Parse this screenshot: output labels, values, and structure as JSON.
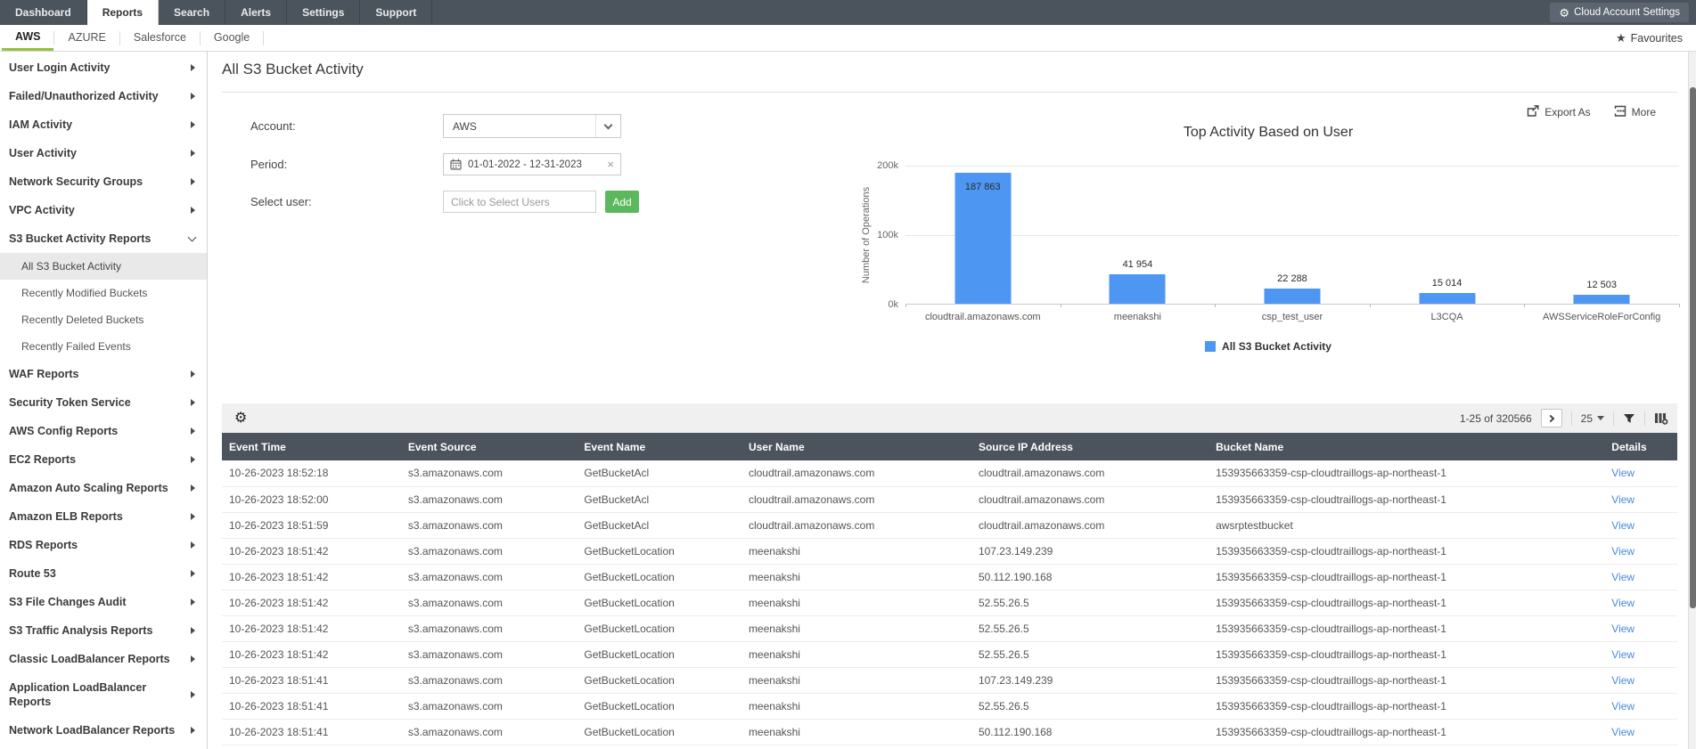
{
  "nav": {
    "tabs": [
      {
        "label": "Dashboard",
        "active": false
      },
      {
        "label": "Reports",
        "active": true
      },
      {
        "label": "Search",
        "active": false
      },
      {
        "label": "Alerts",
        "active": false
      },
      {
        "label": "Settings",
        "active": false
      },
      {
        "label": "Support",
        "active": false
      }
    ],
    "settings_button": "Cloud Account Settings"
  },
  "subnav": {
    "tabs": [
      {
        "label": "AWS",
        "active": true
      },
      {
        "label": "AZURE",
        "active": false
      },
      {
        "label": "Salesforce",
        "active": false
      },
      {
        "label": "Google",
        "active": false
      }
    ],
    "favourites_label": "Favourites"
  },
  "sidebar": {
    "items": [
      {
        "label": "User Login Activity",
        "type": "group"
      },
      {
        "label": "Failed/Unauthorized Activity",
        "type": "group"
      },
      {
        "label": "IAM Activity",
        "type": "group"
      },
      {
        "label": "User Activity",
        "type": "group"
      },
      {
        "label": "Network Security Groups",
        "type": "group"
      },
      {
        "label": "VPC Activity",
        "type": "group"
      },
      {
        "label": "S3 Bucket Activity Reports",
        "type": "group",
        "expanded": true
      },
      {
        "label": "All S3 Bucket Activity",
        "type": "sub",
        "selected": true
      },
      {
        "label": "Recently Modified Buckets",
        "type": "sub"
      },
      {
        "label": "Recently Deleted Buckets",
        "type": "sub"
      },
      {
        "label": "Recently Failed Events",
        "type": "sub"
      },
      {
        "label": "WAF Reports",
        "type": "group"
      },
      {
        "label": "Security Token Service",
        "type": "group"
      },
      {
        "label": "AWS Config Reports",
        "type": "group"
      },
      {
        "label": "EC2 Reports",
        "type": "group"
      },
      {
        "label": "Amazon Auto Scaling Reports",
        "type": "group"
      },
      {
        "label": "Amazon ELB Reports",
        "type": "group"
      },
      {
        "label": "RDS Reports",
        "type": "group"
      },
      {
        "label": "Route 53",
        "type": "group"
      },
      {
        "label": "S3 File Changes Audit",
        "type": "group"
      },
      {
        "label": "S3 Traffic Analysis Reports",
        "type": "group"
      },
      {
        "label": "Classic LoadBalancer Reports",
        "type": "group"
      },
      {
        "label": "Application LoadBalancer Reports",
        "type": "group"
      },
      {
        "label": "Network LoadBalancer Reports",
        "type": "group"
      }
    ]
  },
  "page": {
    "title": "All S3 Bucket Activity"
  },
  "filters": {
    "account_label": "Account:",
    "account_value": "AWS",
    "period_label": "Period:",
    "period_value": "01-01-2022 - 12-31-2023",
    "user_label": "Select user:",
    "user_placeholder": "Click to Select Users",
    "add_button": "Add"
  },
  "actions": {
    "export_label": "Export As",
    "more_label": "More"
  },
  "chart_data": {
    "type": "bar",
    "title": "Top Activity Based on User",
    "categories": [
      "cloudtrail.amazonaws.com",
      "meenakshi",
      "csp_test_user",
      "L3CQA",
      "AWSServiceRoleForConfig"
    ],
    "values": [
      187863,
      41954,
      22288,
      15014,
      12503
    ],
    "value_labels": [
      "187 863",
      "41 954",
      "22 288",
      "15 014",
      "12 503"
    ],
    "xlabel": "",
    "ylabel": "Number of Operations",
    "ylim": [
      0,
      200000
    ],
    "yticks": [
      "200k",
      "100k",
      "0k"
    ],
    "grid": true,
    "legend": [
      "All S3 Bucket Activity"
    ],
    "legend_position": "bottom",
    "bar_color": "#4d96f2"
  },
  "toolbar": {
    "pagination": "1-25 of 320566",
    "page_size": "25"
  },
  "table": {
    "columns": [
      "Event Time",
      "Event Source",
      "Event Name",
      "User Name",
      "Source IP Address",
      "Bucket Name",
      "Details"
    ],
    "view_label": "View",
    "rows": [
      [
        "10-26-2023 18:52:18",
        "s3.amazonaws.com",
        "GetBucketAcl",
        "cloudtrail.amazonaws.com",
        "cloudtrail.amazonaws.com",
        "153935663359-csp-cloudtraillogs-ap-northeast-1"
      ],
      [
        "10-26-2023 18:52:00",
        "s3.amazonaws.com",
        "GetBucketAcl",
        "cloudtrail.amazonaws.com",
        "cloudtrail.amazonaws.com",
        "153935663359-csp-cloudtraillogs-ap-northeast-1"
      ],
      [
        "10-26-2023 18:51:59",
        "s3.amazonaws.com",
        "GetBucketAcl",
        "cloudtrail.amazonaws.com",
        "cloudtrail.amazonaws.com",
        "awsrptestbucket"
      ],
      [
        "10-26-2023 18:51:42",
        "s3.amazonaws.com",
        "GetBucketLocation",
        "meenakshi",
        "107.23.149.239",
        "153935663359-csp-cloudtraillogs-ap-northeast-1"
      ],
      [
        "10-26-2023 18:51:42",
        "s3.amazonaws.com",
        "GetBucketLocation",
        "meenakshi",
        "50.112.190.168",
        "153935663359-csp-cloudtraillogs-ap-northeast-1"
      ],
      [
        "10-26-2023 18:51:42",
        "s3.amazonaws.com",
        "GetBucketLocation",
        "meenakshi",
        "52.55.26.5",
        "153935663359-csp-cloudtraillogs-ap-northeast-1"
      ],
      [
        "10-26-2023 18:51:42",
        "s3.amazonaws.com",
        "GetBucketLocation",
        "meenakshi",
        "52.55.26.5",
        "153935663359-csp-cloudtraillogs-ap-northeast-1"
      ],
      [
        "10-26-2023 18:51:42",
        "s3.amazonaws.com",
        "GetBucketLocation",
        "meenakshi",
        "52.55.26.5",
        "153935663359-csp-cloudtraillogs-ap-northeast-1"
      ],
      [
        "10-26-2023 18:51:41",
        "s3.amazonaws.com",
        "GetBucketLocation",
        "meenakshi",
        "107.23.149.239",
        "153935663359-csp-cloudtraillogs-ap-northeast-1"
      ],
      [
        "10-26-2023 18:51:41",
        "s3.amazonaws.com",
        "GetBucketLocation",
        "meenakshi",
        "52.55.26.5",
        "153935663359-csp-cloudtraillogs-ap-northeast-1"
      ],
      [
        "10-26-2023 18:51:41",
        "s3.amazonaws.com",
        "GetBucketLocation",
        "meenakshi",
        "50.112.190.168",
        "153935663359-csp-cloudtraillogs-ap-northeast-1"
      ]
    ]
  },
  "colors": {
    "nav_bg": "#4b545c",
    "accent_green": "#94c13d",
    "button_green": "#5cb85c",
    "bar_blue": "#4d96f2",
    "link_blue": "#4a89dc",
    "table_header_bg": "#4b545c"
  }
}
